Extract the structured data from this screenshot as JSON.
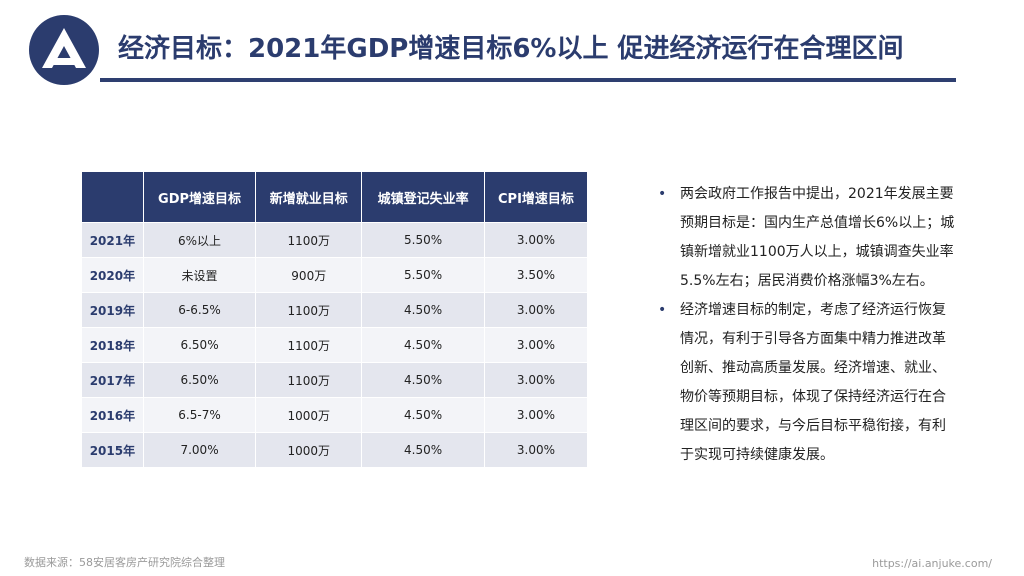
{
  "header": {
    "title": "经济目标：2021年GDP增速目标6%以上 促进经济运行在合理区间",
    "logo_icon": "anjuke-triangle-logo"
  },
  "colors": {
    "primary": "#2b3c6e"
  },
  "table": {
    "headers": [
      "",
      "GDP增速目标",
      "新增就业目标",
      "城镇登记失业率",
      "CPI增速目标"
    ],
    "rows": [
      [
        "2021年",
        "6%以上",
        "1100万",
        "5.50%",
        "3.00%"
      ],
      [
        "2020年",
        "未设置",
        "900万",
        "5.50%",
        "3.50%"
      ],
      [
        "2019年",
        "6-6.5%",
        "1100万",
        "4.50%",
        "3.00%"
      ],
      [
        "2018年",
        "6.50%",
        "1100万",
        "4.50%",
        "3.00%"
      ],
      [
        "2017年",
        "6.50%",
        "1100万",
        "4.50%",
        "3.00%"
      ],
      [
        "2016年",
        "6.5-7%",
        "1000万",
        "4.50%",
        "3.00%"
      ],
      [
        "2015年",
        "7.00%",
        "1000万",
        "4.50%",
        "3.00%"
      ]
    ]
  },
  "bullets": [
    "两会政府工作报告中提出，2021年发展主要预期目标是：国内生产总值增长6%以上；城镇新增就业1100万人以上，城镇调查失业率5.5%左右；居民消费价格涨幅3%左右。",
    "经济增速目标的制定，考虑了经济运行恢复情况，有利于引导各方面集中精力推进改革创新、推动高质量发展。经济增速、就业、物价等预期目标，体现了保持经济运行在合理区间的要求，与今后目标平稳衔接，有利于实现可持续健康发展。"
  ],
  "bullet_marker": "•",
  "footer": {
    "source": "数据来源：58安居客房产研究院综合整理",
    "url": "https://ai.anjuke.com/"
  }
}
